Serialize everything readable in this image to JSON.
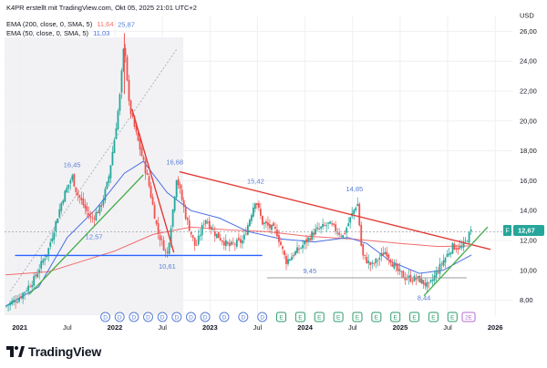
{
  "header": {
    "created": "K4PR erstellt mit TradingView.com, Okt 05, 2025 21:01 UTC+2",
    "ema200_label": "EMA (200, close, 0, SMA, 5)",
    "ema200_value": "11,64",
    "ema50_label": "EMA (50, close, 0, SMA, 5)",
    "ema50_value": "11,03"
  },
  "branding": {
    "logo_text": "TradingView"
  },
  "colors": {
    "up": "#26a69a",
    "down": "#ef5350",
    "ema200": "#f26d6d",
    "ema50": "#4a6fe3",
    "trend_red": "#e53935",
    "support_blue": "#2962ff",
    "trend_green": "#4caf50",
    "support_gray": "#9e9e9e",
    "label_blue": "#5a7fd6",
    "price_badge": "#26a69a"
  },
  "chart_data": {
    "type": "candlestick",
    "currency": "USD",
    "ylim": [
      7,
      27
    ],
    "y_ticks": [
      "8,00",
      "10,00",
      "12,00",
      "14,00",
      "16,00",
      "18,00",
      "20,00",
      "22,00",
      "24,00",
      "26,00"
    ],
    "x_ticks": [
      "2021",
      "Jul",
      "2022",
      "Jul",
      "2023",
      "Jul",
      "2024",
      "Jul",
      "2025",
      "Jul",
      "2026"
    ],
    "grid": true,
    "last_price": "12,67",
    "last_price_badge": "F",
    "ref_price_line": "12,57",
    "annotations": [
      "16,45",
      "25,87",
      "16,68",
      "12,57",
      "10,61",
      "15,42",
      "14,85",
      "9,45",
      "8,44"
    ],
    "close_path": [
      [
        2020.85,
        7.6
      ],
      [
        2021.0,
        8.2
      ],
      [
        2021.15,
        9.4
      ],
      [
        2021.3,
        11.4
      ],
      [
        2021.45,
        14.8
      ],
      [
        2021.55,
        16.3
      ],
      [
        2021.6,
        15.2
      ],
      [
        2021.75,
        13.4
      ],
      [
        2021.85,
        14.2
      ],
      [
        2021.93,
        16.0
      ],
      [
        2022.0,
        19.0
      ],
      [
        2022.05,
        21.5
      ],
      [
        2022.1,
        25.4
      ],
      [
        2022.15,
        21.0
      ],
      [
        2022.25,
        18.5
      ],
      [
        2022.35,
        16.0
      ],
      [
        2022.45,
        12.6
      ],
      [
        2022.55,
        11.0
      ],
      [
        2022.6,
        13.5
      ],
      [
        2022.65,
        16.3
      ],
      [
        2022.75,
        13.5
      ],
      [
        2022.85,
        11.5
      ],
      [
        2022.95,
        13.5
      ],
      [
        2023.05,
        12.5
      ],
      [
        2023.2,
        11.6
      ],
      [
        2023.35,
        12.0
      ],
      [
        2023.48,
        14.8
      ],
      [
        2023.55,
        13.2
      ],
      [
        2023.7,
        12.6
      ],
      [
        2023.8,
        10.6
      ],
      [
        2023.95,
        11.5
      ],
      [
        2024.1,
        12.6
      ],
      [
        2024.25,
        13.1
      ],
      [
        2024.4,
        12.3
      ],
      [
        2024.55,
        14.6
      ],
      [
        2024.6,
        11.0
      ],
      [
        2024.7,
        10.3
      ],
      [
        2024.85,
        11.3
      ],
      [
        2024.95,
        10.1
      ],
      [
        2025.05,
        9.5
      ],
      [
        2025.2,
        9.4
      ],
      [
        2025.3,
        8.9
      ],
      [
        2025.45,
        10.6
      ],
      [
        2025.55,
        11.6
      ],
      [
        2025.65,
        11.5
      ],
      [
        2025.75,
        12.67
      ]
    ],
    "ema200": [
      [
        2020.85,
        9.7
      ],
      [
        2021.3,
        9.9
      ],
      [
        2021.7,
        10.7
      ],
      [
        2022.0,
        11.3
      ],
      [
        2022.4,
        12.4
      ],
      [
        2022.8,
        12.9
      ],
      [
        2023.2,
        12.7
      ],
      [
        2023.6,
        12.6
      ],
      [
        2024.0,
        12.3
      ],
      [
        2024.5,
        12.1
      ],
      [
        2025.0,
        11.8
      ],
      [
        2025.4,
        11.6
      ],
      [
        2025.75,
        11.64
      ]
    ],
    "ema50": [
      [
        2020.85,
        7.6
      ],
      [
        2021.2,
        8.9
      ],
      [
        2021.5,
        12.2
      ],
      [
        2021.8,
        14.1
      ],
      [
        2022.1,
        16.5
      ],
      [
        2022.3,
        17.3
      ],
      [
        2022.55,
        15.2
      ],
      [
        2022.8,
        14.0
      ],
      [
        2023.1,
        13.5
      ],
      [
        2023.4,
        12.6
      ],
      [
        2023.75,
        12.1
      ],
      [
        2024.1,
        11.9
      ],
      [
        2024.45,
        12.2
      ],
      [
        2024.65,
        11.8
      ],
      [
        2024.9,
        10.6
      ],
      [
        2025.2,
        9.8
      ],
      [
        2025.45,
        10.0
      ],
      [
        2025.75,
        11.03
      ]
    ],
    "trend_lines": [
      {
        "color": "trend_red",
        "points": [
          [
            2022.18,
            20.8
          ],
          [
            2022.62,
            11.2
          ]
        ]
      },
      {
        "color": "trend_red",
        "points": [
          [
            2022.68,
            16.6
          ],
          [
            2025.95,
            11.4
          ]
        ]
      },
      {
        "color": "support_blue",
        "points": [
          [
            2020.95,
            11.0
          ],
          [
            2023.55,
            11.0
          ]
        ]
      },
      {
        "color": "trend_green",
        "points": [
          [
            2021.1,
            8.4
          ],
          [
            2022.3,
            16.4
          ]
        ]
      },
      {
        "color": "support_gray",
        "points": [
          [
            2023.6,
            9.5
          ],
          [
            2025.7,
            9.5
          ]
        ]
      },
      {
        "color": "trend_green",
        "points": [
          [
            2025.25,
            8.3
          ],
          [
            2025.92,
            12.9
          ]
        ]
      }
    ],
    "event_markers": [
      {
        "x": 2021.9,
        "label": "D"
      },
      {
        "x": 2022.05,
        "label": "D"
      },
      {
        "x": 2022.2,
        "label": "D"
      },
      {
        "x": 2022.35,
        "label": "D"
      },
      {
        "x": 2022.5,
        "label": "D"
      },
      {
        "x": 2022.65,
        "label": "D"
      },
      {
        "x": 2022.8,
        "label": "D"
      },
      {
        "x": 2022.95,
        "label": "D"
      },
      {
        "x": 2023.15,
        "label": "D"
      },
      {
        "x": 2023.35,
        "label": "D"
      },
      {
        "x": 2023.55,
        "label": "D"
      },
      {
        "x": 2023.75,
        "label": "E"
      },
      {
        "x": 2023.95,
        "label": "E"
      },
      {
        "x": 2024.15,
        "label": "E"
      },
      {
        "x": 2024.35,
        "label": "E"
      },
      {
        "x": 2024.55,
        "label": "E"
      },
      {
        "x": 2024.75,
        "label": "E"
      },
      {
        "x": 2024.95,
        "label": "E"
      },
      {
        "x": 2025.15,
        "label": "E"
      },
      {
        "x": 2025.35,
        "label": "E"
      },
      {
        "x": 2025.55,
        "label": "E"
      },
      {
        "x": 2025.72,
        "label": "2E"
      }
    ]
  }
}
